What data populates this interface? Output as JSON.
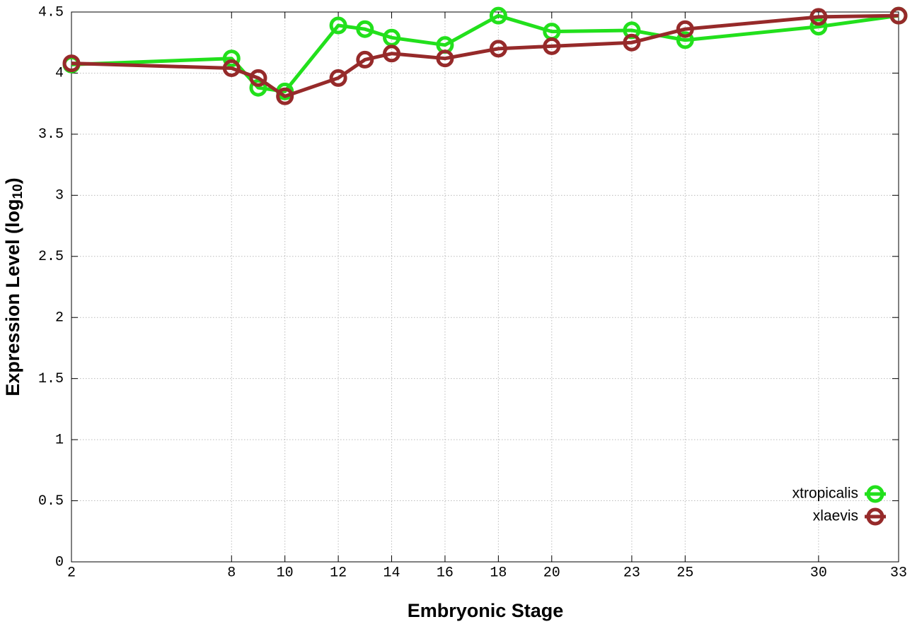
{
  "chart_data": {
    "type": "line",
    "xlabel": "Embryonic Stage",
    "ylabel": [
      "Expression Level (log",
      "10",
      ")"
    ],
    "x": [
      2,
      8,
      9,
      10,
      12,
      13,
      14,
      16,
      18,
      20,
      23,
      25,
      30,
      33
    ],
    "series": [
      {
        "name": "xtropicalis",
        "color": "#22e01c",
        "values": [
          4.07,
          4.12,
          3.88,
          3.85,
          4.39,
          4.36,
          4.29,
          4.23,
          4.47,
          4.34,
          4.35,
          4.27,
          4.38,
          4.47
        ]
      },
      {
        "name": "xlaevis",
        "color": "#962a2a",
        "values": [
          4.08,
          4.04,
          3.96,
          3.81,
          3.96,
          4.11,
          4.16,
          4.12,
          4.2,
          4.22,
          4.25,
          4.36,
          4.46,
          4.47
        ]
      }
    ],
    "xlim": [
      2,
      33
    ],
    "xticks": [
      2,
      8,
      10,
      12,
      14,
      16,
      18,
      20,
      23,
      25,
      30,
      33
    ],
    "ylim": [
      0,
      4.5
    ],
    "yticks": [
      0,
      0.5,
      1,
      1.5,
      2,
      2.5,
      3,
      3.5,
      4,
      4.5
    ],
    "grid": true,
    "legend": "lower right"
  }
}
